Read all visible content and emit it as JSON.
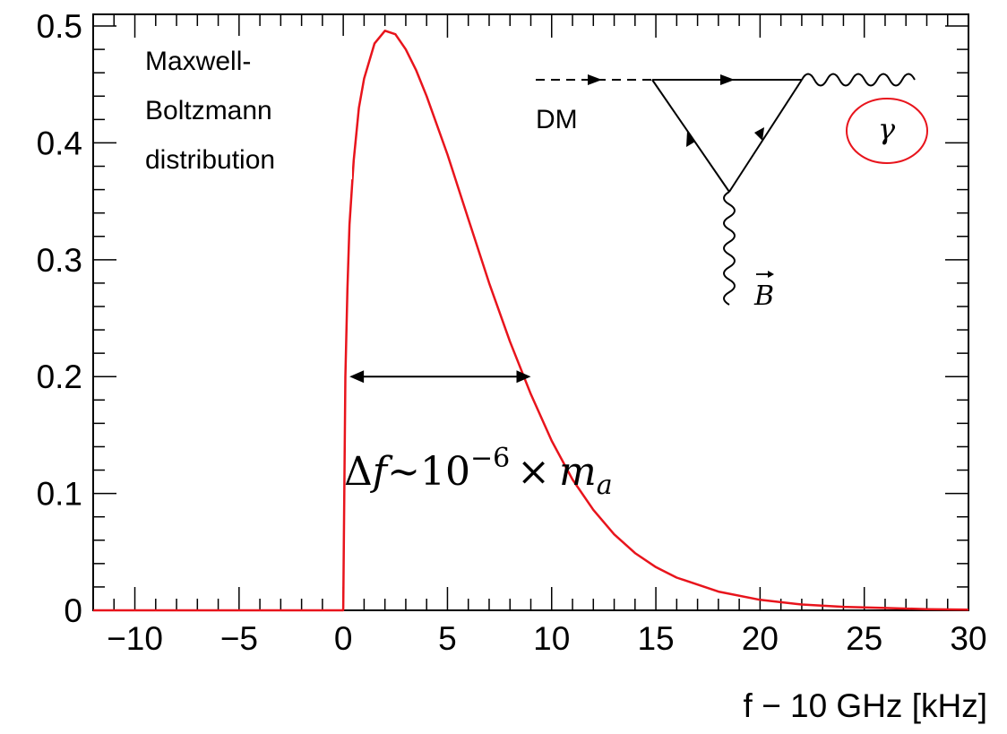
{
  "chart_data": {
    "type": "line",
    "title": "",
    "xlabel": "f − 10 GHz [kHz]",
    "ylabel": "",
    "xlim": [
      -12,
      30
    ],
    "ylim": [
      0,
      0.51
    ],
    "x_ticks": [
      -10,
      -5,
      0,
      5,
      10,
      15,
      20,
      25,
      30
    ],
    "x_tick_labels": [
      "−10",
      "−5",
      "0",
      "5",
      "10",
      "15",
      "20",
      "25",
      "30"
    ],
    "y_ticks": [
      0,
      0.1,
      0.2,
      0.3,
      0.4,
      0.5
    ],
    "y_tick_labels": [
      "0",
      "0.1",
      "0.2",
      "0.3",
      "0.4",
      "0.5"
    ],
    "grid": false,
    "series": [
      {
        "color": "#e8141c",
        "x": [
          -12,
          -10,
          -5,
          0,
          0.05,
          0.1,
          0.2,
          0.3,
          0.5,
          0.75,
          1.0,
          1.5,
          2.0,
          2.5,
          3.0,
          3.5,
          4.0,
          5.0,
          6.0,
          7.0,
          8.0,
          9.0,
          10.0,
          11.0,
          12.0,
          13.0,
          14.0,
          15.0,
          16.0,
          18.0,
          20.0,
          22.0,
          24.0,
          26.0,
          28.0,
          30.0
        ],
        "values": [
          0,
          0,
          0,
          0,
          0.1,
          0.2,
          0.275,
          0.33,
          0.385,
          0.43,
          0.455,
          0.485,
          0.496,
          0.493,
          0.48,
          0.462,
          0.44,
          0.39,
          0.335,
          0.28,
          0.23,
          0.185,
          0.145,
          0.112,
          0.086,
          0.065,
          0.049,
          0.037,
          0.028,
          0.016,
          0.009,
          0.005,
          0.003,
          0.002,
          0.001,
          0.0005
        ]
      }
    ],
    "annotations": {
      "text_lines": [
        "Maxwell-",
        "Boltzmann",
        "distribution"
      ],
      "width_label_prefix": "Δ",
      "width_label_f": "f",
      "width_label_sim": "∼10",
      "width_label_exp": "−6",
      "width_label_times": "×",
      "width_label_m": "m",
      "width_label_sub": "a",
      "arrow_from_x": 0.3,
      "arrow_to_x": 9.0,
      "arrow_y": 0.2,
      "diagram_dm_label": "DM",
      "diagram_gamma_label": "γ",
      "diagram_b_label": "B",
      "gamma_circle_color": "#e8141c"
    }
  }
}
